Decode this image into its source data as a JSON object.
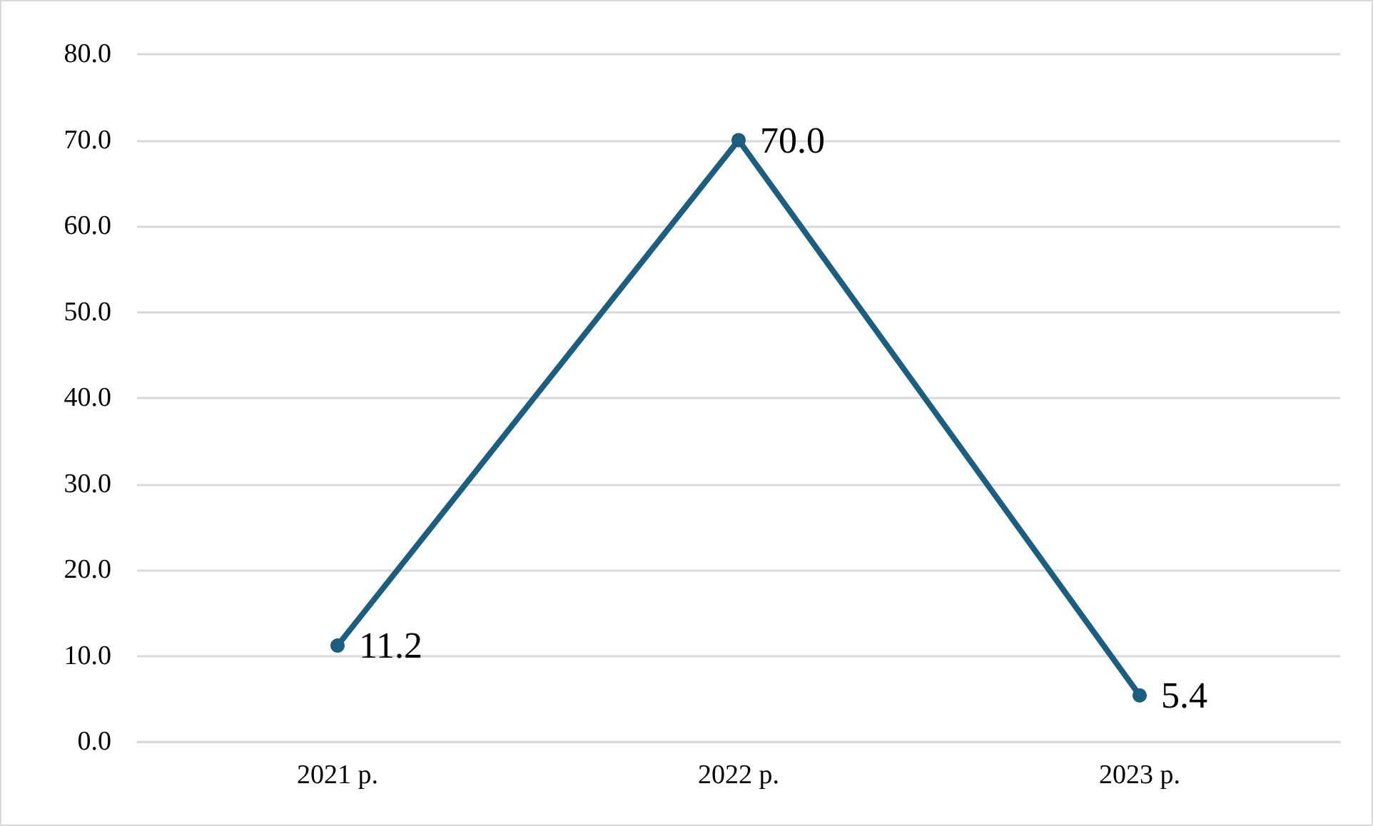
{
  "chart_data": {
    "type": "line",
    "categories": [
      "2021 р.",
      "2022 р.",
      "2023 р."
    ],
    "series": [
      {
        "color": "#1b5e80",
        "values": [
          11.2,
          70.0,
          5.4
        ],
        "value_labels": [
          "11.2",
          "70.0",
          "5.4"
        ]
      }
    ],
    "ylim": [
      0,
      80
    ],
    "yticks": [
      {
        "value": 0,
        "label": "0.0"
      },
      {
        "value": 10,
        "label": "10.0"
      },
      {
        "value": 20,
        "label": "20.0"
      },
      {
        "value": 30,
        "label": "30.0"
      },
      {
        "value": 40,
        "label": "40.0"
      },
      {
        "value": 50,
        "label": "50.0"
      },
      {
        "value": 60,
        "label": "60.0"
      },
      {
        "value": 70,
        "label": "70.0"
      },
      {
        "value": 80,
        "label": "80.0"
      }
    ],
    "grid": "y",
    "marker": "circle",
    "line_style": "solid"
  }
}
